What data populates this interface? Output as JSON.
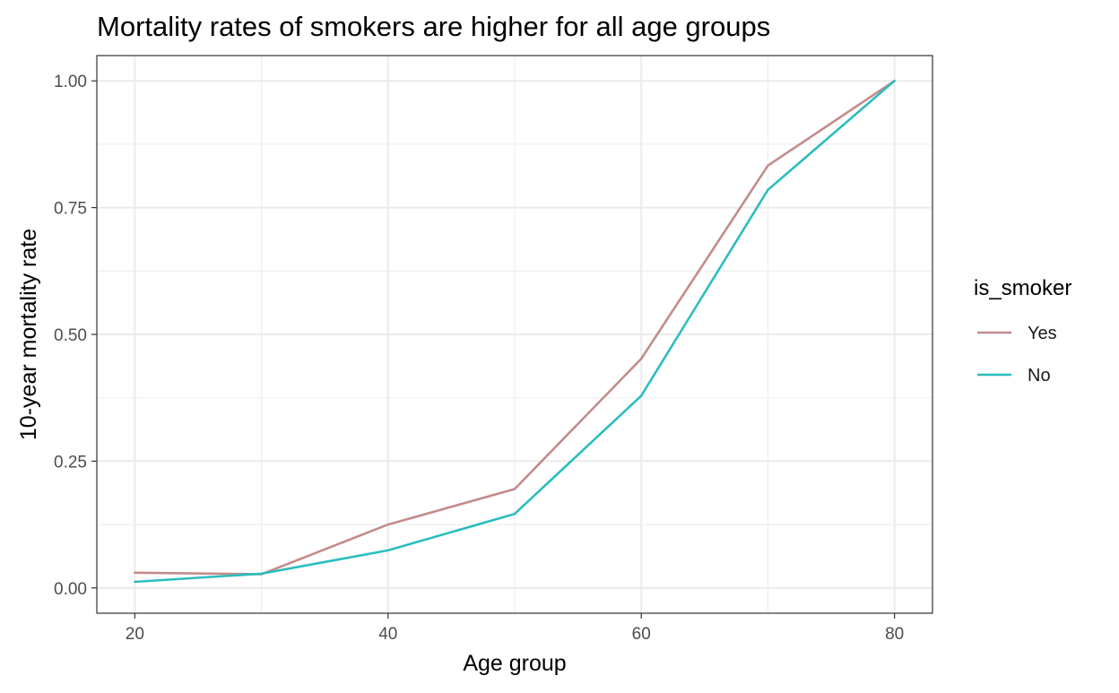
{
  "chart_data": {
    "type": "line",
    "title": "Mortality rates of smokers are higher for all age groups",
    "xlabel": "Age group",
    "ylabel": "10-year mortality rate",
    "x": [
      20,
      30,
      40,
      50,
      60,
      70,
      80
    ],
    "xlim": [
      17,
      83
    ],
    "ylim": [
      -0.0499,
      1.0499
    ],
    "x_ticks": [
      20,
      40,
      60,
      80
    ],
    "x_tick_labels": [
      "20",
      "40",
      "60",
      "80"
    ],
    "x_minor_ticks": [
      30,
      50,
      70
    ],
    "y_ticks": [
      0,
      0.25,
      0.5,
      0.75,
      1.0
    ],
    "y_tick_labels": [
      "0.00",
      "0.25",
      "0.50",
      "0.75",
      "1.00"
    ],
    "y_minor_ticks": [
      0.125,
      0.375,
      0.625,
      0.875
    ],
    "grid": true,
    "legend": {
      "title": "is_smoker",
      "placement": "right"
    },
    "series": [
      {
        "name": "Yes",
        "color": "#c48b8b",
        "values": [
          0.03,
          0.027,
          0.125,
          0.195,
          0.452,
          0.833,
          1.0
        ]
      },
      {
        "name": "No",
        "color": "#2bbdbf",
        "values": [
          0.012,
          0.028,
          0.074,
          0.146,
          0.379,
          0.785,
          1.0
        ]
      }
    ]
  }
}
